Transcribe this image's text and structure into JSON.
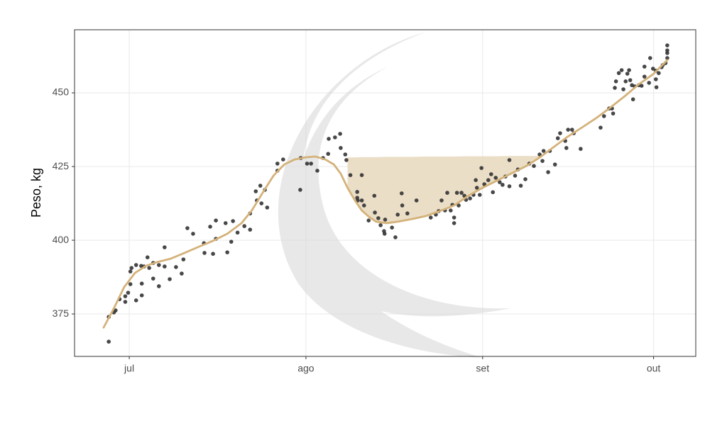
{
  "chart_data": {
    "type": "scatter",
    "y_label": "Peso, kg",
    "xlim": [
      -9.6,
      99.4
    ],
    "ylim": [
      360.6,
      471.4
    ],
    "xticks": [
      {
        "value": 0,
        "label": "jul"
      },
      {
        "value": 31,
        "label": "ago"
      },
      {
        "value": 62,
        "label": "set"
      },
      {
        "value": 92,
        "label": "out"
      }
    ],
    "yticks": [
      375,
      400,
      425,
      450
    ],
    "grid": true,
    "series": [
      {
        "type": "area",
        "color": "#e8d8bd",
        "x": [
          38.3,
          39.6,
          40.8,
          42.1,
          43.3,
          45.2,
          47.1,
          49.6,
          52.0,
          54.5,
          57.0,
          59.5,
          62.0,
          64.5,
          67.0,
          69.5,
          71.9
        ],
        "values": [
          428.1,
          428.1,
          428.2,
          428.2,
          428.2,
          428.3,
          428.3,
          428.3,
          428.4,
          428.4,
          428.4,
          428.5,
          428.5,
          428.5,
          428.6,
          428.6,
          428.6
        ],
        "lower": [
          417.8,
          413.5,
          410.1,
          407.9,
          406.3,
          405.8,
          406.3,
          407.2,
          408.2,
          409.9,
          411.8,
          415.1,
          417.8,
          420.2,
          422.6,
          425.0,
          427.9
        ]
      },
      {
        "type": "scatter",
        "color": "#333333",
        "x": [
          -3.6,
          -3.6,
          -2.7,
          -2.4,
          -1.7,
          -0.7,
          -0.7,
          -0.2,
          0.2,
          0.2,
          0.4,
          1.2,
          1.2,
          2.1,
          2.2,
          2.2,
          2.6,
          3.2,
          3.5,
          4.2,
          4.2,
          5.2,
          5.2,
          6.2,
          6.2,
          7.1,
          8.2,
          9.2,
          9.5,
          10.2,
          11.2,
          13.1,
          13.2,
          14.2,
          14.7,
          15.2,
          15.2,
          16.9,
          17.2,
          17.9,
          18.2,
          19.0,
          20.2,
          21.2,
          21.2,
          22.2,
          22.4,
          23.0,
          23.2,
          23.8,
          24.2,
          26.0,
          26.0,
          27.0,
          30.0,
          30.1,
          31.2,
          31.9,
          33.0,
          34.0,
          34.9,
          35.0,
          36.1,
          37.0,
          37.1,
          37.9,
          38.1,
          38.8,
          40.0,
          40.0,
          40.1,
          40.8,
          40.8,
          41.2,
          42.0,
          43.0,
          43.1,
          43.7,
          44.1,
          44.7,
          44.8,
          44.9,
          46.1,
          46.7,
          47.1,
          47.8,
          47.9,
          48.8,
          50.4,
          52.9,
          53.8,
          54.3,
          54.8,
          55.4,
          55.8,
          56.4,
          56.7,
          57.0,
          57.0,
          57.5,
          57.8,
          58.3,
          58.8,
          59.1,
          59.8,
          60.4,
          60.8,
          61.0,
          61.5,
          61.8,
          62.3,
          63.0,
          63.5,
          63.8,
          64.3,
          65.0,
          65.5,
          66.0,
          66.7,
          66.7,
          67.7,
          68.2,
          68.7,
          69.5,
          70.2,
          71.0,
          72.0,
          72.5,
          72.7,
          73.5,
          73.8,
          74.7,
          75.2,
          75.6,
          76.5,
          76.7,
          77.0,
          77.7,
          78.0,
          79.2,
          82.7,
          83.3,
          84.2,
          84.7,
          84.9,
          85.2,
          85.4,
          85.9,
          86.4,
          86.7,
          87.1,
          87.4,
          87.7,
          87.9,
          88.2,
          88.4,
          88.7,
          89.4,
          89.9,
          90.4,
          90.4,
          91.2,
          91.4,
          91.9,
          92.4,
          92.4,
          92.5,
          92.9,
          93.4,
          93.6,
          94.1,
          94.4,
          94.4,
          94.4,
          94.4
        ],
        "values": [
          365.6,
          374.0,
          375.5,
          376.2,
          380.0,
          381.0,
          379.1,
          382.2,
          385.1,
          389.4,
          390.6,
          391.6,
          379.6,
          391.3,
          381.3,
          385.3,
          391.1,
          394.2,
          390.6,
          392.3,
          387.0,
          384.4,
          391.6,
          397.6,
          391.1,
          386.8,
          390.9,
          388.7,
          393.5,
          404.1,
          402.2,
          399.0,
          395.7,
          404.6,
          395.4,
          406.7,
          400.5,
          405.8,
          395.9,
          399.5,
          406.5,
          402.6,
          404.8,
          403.6,
          409.1,
          416.6,
          413.5,
          418.5,
          412.5,
          417.1,
          411.1,
          423.6,
          426.0,
          427.4,
          417.1,
          427.9,
          426.0,
          426.0,
          423.6,
          427.9,
          429.3,
          434.4,
          434.9,
          436.1,
          431.3,
          429.1,
          427.2,
          422.1,
          416.4,
          414.4,
          413.5,
          413.5,
          422.1,
          411.8,
          406.7,
          415.1,
          409.4,
          407.5,
          405.1,
          403.1,
          402.2,
          407.0,
          404.3,
          401.0,
          408.7,
          415.9,
          411.8,
          409.1,
          413.5,
          407.7,
          408.7,
          409.9,
          413.5,
          410.1,
          416.1,
          410.1,
          412.0,
          405.8,
          407.7,
          416.1,
          411.8,
          416.1,
          415.1,
          413.7,
          414.2,
          415.4,
          420.4,
          417.8,
          415.4,
          424.5,
          419.0,
          420.4,
          422.4,
          416.3,
          421.2,
          419.7,
          418.8,
          421.6,
          427.2,
          418.3,
          421.9,
          424.0,
          418.5,
          420.7,
          426.0,
          425.2,
          429.1,
          426.9,
          430.3,
          423.1,
          430.3,
          425.7,
          434.6,
          436.3,
          433.7,
          431.3,
          437.5,
          437.5,
          436.3,
          431.0,
          438.2,
          442.1,
          444.7,
          444.7,
          443.0,
          451.7,
          453.9,
          456.7,
          457.7,
          451.2,
          453.9,
          456.5,
          457.7,
          454.3,
          452.6,
          447.8,
          452.2,
          452.6,
          452.4,
          458.9,
          455.5,
          453.4,
          461.8,
          458.2,
          457.5,
          454.6,
          451.9,
          456.7,
          458.7,
          459.4,
          460.1,
          461.8,
          466.1,
          464.4,
          463.5
        ]
      },
      {
        "type": "line",
        "color": "#d4b27a",
        "x": [
          -4.5,
          -2.7,
          -0.9,
          1.0,
          2.9,
          4.7,
          7.2,
          9.7,
          12.2,
          14.7,
          17.2,
          19.7,
          21.5,
          23.4,
          25.3,
          27.2,
          29.0,
          30.9,
          32.7,
          34.4,
          35.9,
          37.1,
          38.3,
          39.6,
          40.8,
          42.1,
          43.3,
          45.2,
          47.1,
          49.6,
          52.0,
          54.5,
          57.0,
          59.5,
          62.0,
          64.5,
          67.0,
          69.5,
          71.9,
          74.4,
          76.9,
          79.4,
          81.9,
          84.4,
          86.9,
          89.4,
          91.9,
          94.4
        ],
        "values": [
          370.4,
          376.9,
          384.1,
          388.9,
          391.3,
          392.5,
          393.7,
          395.7,
          397.8,
          399.8,
          402.2,
          405.8,
          410.1,
          416.1,
          421.9,
          425.7,
          427.4,
          428.1,
          428.4,
          427.4,
          425.7,
          422.6,
          417.8,
          413.5,
          410.1,
          407.9,
          406.3,
          405.8,
          406.3,
          407.2,
          408.2,
          409.9,
          411.8,
          415.1,
          417.8,
          420.2,
          422.6,
          425.0,
          427.9,
          431.5,
          435.1,
          438.2,
          441.4,
          445.0,
          448.8,
          452.9,
          456.3,
          461.1
        ]
      }
    ]
  }
}
